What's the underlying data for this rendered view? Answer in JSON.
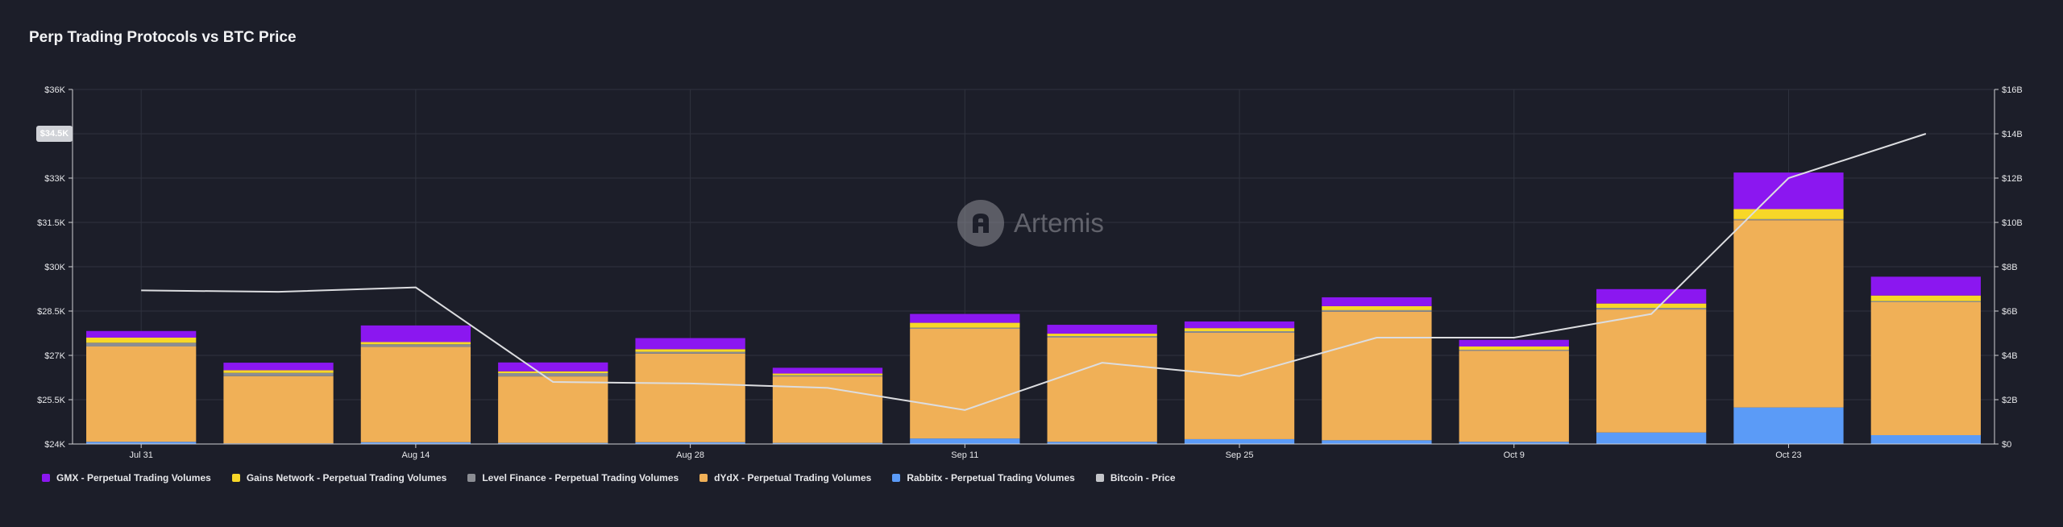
{
  "chart_data": {
    "type": "bar",
    "title": "Perp Trading Protocols vs BTC Price",
    "x_tick_labels": [
      "Jul 31",
      "Aug 14",
      "Aug 28",
      "Sep 11",
      "Sep 25",
      "Oct 9",
      "Oct 23"
    ],
    "categories": [
      "Jul 31",
      "Aug 7",
      "Aug 14",
      "Aug 21",
      "Aug 28",
      "Sep 4",
      "Sep 11",
      "Sep 18",
      "Sep 25",
      "Oct 2",
      "Oct 9",
      "Oct 16",
      "Oct 23",
      "Oct 30"
    ],
    "y_left": {
      "ticks": [
        "$24K",
        "$25.5K",
        "$27K",
        "$28.5K",
        "$30K",
        "$31.5K",
        "$33K",
        "$34.5K",
        "$36K"
      ],
      "ylim": [
        24000,
        36000
      ]
    },
    "y_right": {
      "ticks": [
        "$0",
        "$2B",
        "$4B",
        "$6B",
        "$8B",
        "$10B",
        "$12B",
        "$14B",
        "$16B"
      ],
      "ylim": [
        0,
        16
      ]
    },
    "series": [
      {
        "name": "Rabbitx - Perpetual Trading Volumes",
        "color": "#5b9bf7",
        "axis": "right",
        "values": [
          0.1,
          0.03,
          0.08,
          0.05,
          0.08,
          0.05,
          0.25,
          0.1,
          0.22,
          0.17,
          0.1,
          0.52,
          1.65,
          0.4
        ]
      },
      {
        "name": "dYdX - Perpetual Trading Volumes",
        "color": "#f0b057",
        "axis": "right",
        "values": [
          4.3,
          3.03,
          4.3,
          3.0,
          4.0,
          3.0,
          4.95,
          4.7,
          4.8,
          5.8,
          4.1,
          5.55,
          8.45,
          6.0
        ]
      },
      {
        "name": "Level Finance - Perpetual Trading Volumes",
        "color": "#8b8d93",
        "axis": "right",
        "values": [
          0.17,
          0.15,
          0.12,
          0.15,
          0.08,
          0.05,
          0.05,
          0.07,
          0.07,
          0.07,
          0.05,
          0.07,
          0.05,
          0.05
        ]
      },
      {
        "name": "Gains Network - Perpetual Trading Volumes",
        "color": "#f7d728",
        "axis": "right",
        "values": [
          0.23,
          0.12,
          0.1,
          0.08,
          0.12,
          0.08,
          0.22,
          0.11,
          0.14,
          0.18,
          0.15,
          0.2,
          0.45,
          0.25
        ]
      },
      {
        "name": "GMX - Perpetual Trading Volumes",
        "color": "#8b17f0",
        "axis": "right",
        "values": [
          0.3,
          0.34,
          0.75,
          0.4,
          0.5,
          0.26,
          0.4,
          0.4,
          0.3,
          0.4,
          0.3,
          0.65,
          1.65,
          0.85
        ]
      }
    ],
    "line": {
      "name": "Bitcoin - Price",
      "color": "#dcdde0",
      "axis": "left",
      "values": [
        29200,
        29150,
        29300,
        26100,
        26050,
        25900,
        25150,
        26750,
        26300,
        27600,
        27600,
        28400,
        33000,
        34500
      ]
    },
    "badge_value": "$34.5K",
    "grid": true,
    "legend_position": "bottom-left"
  },
  "watermark": {
    "text": "Artemis"
  },
  "legend": [
    {
      "label": "GMX - Perpetual Trading Volumes",
      "color": "#8b17f0"
    },
    {
      "label": "Gains Network - Perpetual Trading Volumes",
      "color": "#f7d728"
    },
    {
      "label": "Level Finance - Perpetual Trading Volumes",
      "color": "#8b8d93"
    },
    {
      "label": "dYdX - Perpetual Trading Volumes",
      "color": "#f0b057"
    },
    {
      "label": "Rabbitx - Perpetual Trading Volumes",
      "color": "#5b9bf7"
    },
    {
      "label": "Bitcoin - Price",
      "color": "#c4c5c9"
    }
  ]
}
